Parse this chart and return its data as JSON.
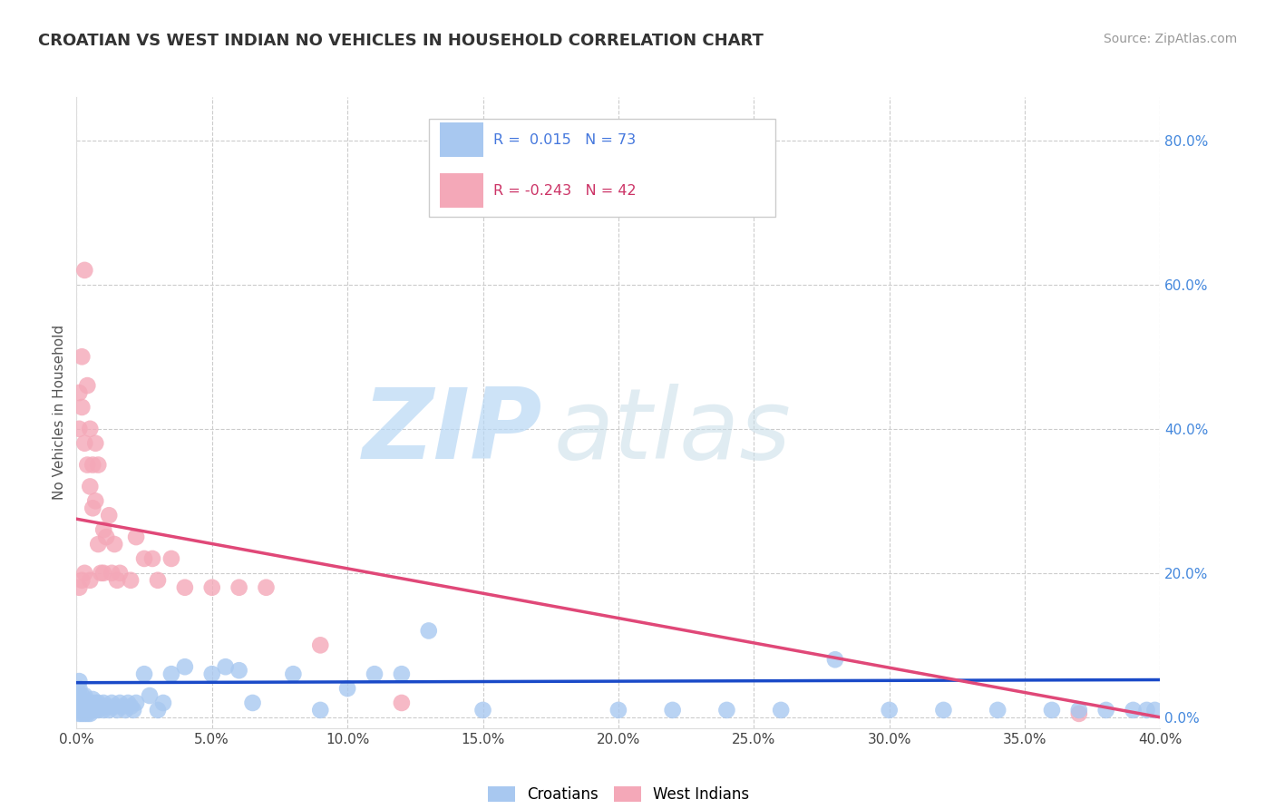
{
  "title": "CROATIAN VS WEST INDIAN NO VEHICLES IN HOUSEHOLD CORRELATION CHART",
  "source": "Source: ZipAtlas.com",
  "ylabel": "No Vehicles in Household",
  "xlim": [
    0.0,
    0.4
  ],
  "ylim": [
    -0.015,
    0.86
  ],
  "x_ticks": [
    0.0,
    0.05,
    0.1,
    0.15,
    0.2,
    0.25,
    0.3,
    0.35,
    0.4
  ],
  "y_ticks": [
    0.0,
    0.2,
    0.4,
    0.6,
    0.8
  ],
  "croatian_color": "#a8c8f0",
  "west_indian_color": "#f4a8b8",
  "croatian_line_color": "#1a4ac8",
  "west_indian_line_color": "#e04878",
  "R_croatian": 0.015,
  "N_croatian": 73,
  "R_west_indian": -0.243,
  "N_west_indian": 42,
  "watermark_zip": "ZIP",
  "watermark_atlas": "atlas",
  "background_color": "#ffffff",
  "legend_r_color": "#4477dd",
  "legend_r2_color": "#cc3366",
  "croatian_x": [
    0.001,
    0.001,
    0.001,
    0.001,
    0.001,
    0.001,
    0.002,
    0.002,
    0.002,
    0.002,
    0.002,
    0.003,
    0.003,
    0.003,
    0.003,
    0.004,
    0.004,
    0.004,
    0.005,
    0.005,
    0.005,
    0.006,
    0.006,
    0.007,
    0.007,
    0.008,
    0.008,
    0.009,
    0.01,
    0.01,
    0.011,
    0.012,
    0.013,
    0.014,
    0.015,
    0.016,
    0.017,
    0.018,
    0.019,
    0.02,
    0.021,
    0.022,
    0.025,
    0.027,
    0.03,
    0.032,
    0.035,
    0.04,
    0.05,
    0.055,
    0.06,
    0.065,
    0.08,
    0.09,
    0.1,
    0.11,
    0.12,
    0.13,
    0.15,
    0.2,
    0.22,
    0.24,
    0.26,
    0.28,
    0.3,
    0.32,
    0.34,
    0.36,
    0.37,
    0.38,
    0.39,
    0.395,
    0.398
  ],
  "croatian_y": [
    0.01,
    0.02,
    0.03,
    0.04,
    0.005,
    0.05,
    0.01,
    0.02,
    0.03,
    0.005,
    0.015,
    0.01,
    0.02,
    0.005,
    0.03,
    0.01,
    0.02,
    0.005,
    0.01,
    0.02,
    0.005,
    0.015,
    0.025,
    0.01,
    0.02,
    0.01,
    0.02,
    0.015,
    0.01,
    0.02,
    0.015,
    0.01,
    0.02,
    0.015,
    0.01,
    0.02,
    0.015,
    0.01,
    0.02,
    0.015,
    0.01,
    0.02,
    0.06,
    0.03,
    0.01,
    0.02,
    0.06,
    0.07,
    0.06,
    0.07,
    0.065,
    0.02,
    0.06,
    0.01,
    0.04,
    0.06,
    0.06,
    0.12,
    0.01,
    0.01,
    0.01,
    0.01,
    0.01,
    0.08,
    0.01,
    0.01,
    0.01,
    0.01,
    0.01,
    0.01,
    0.01,
    0.01,
    0.01
  ],
  "west_indian_x": [
    0.001,
    0.001,
    0.001,
    0.002,
    0.002,
    0.002,
    0.003,
    0.003,
    0.003,
    0.004,
    0.004,
    0.005,
    0.005,
    0.005,
    0.006,
    0.006,
    0.007,
    0.007,
    0.008,
    0.008,
    0.009,
    0.01,
    0.01,
    0.011,
    0.012,
    0.013,
    0.014,
    0.015,
    0.016,
    0.02,
    0.022,
    0.025,
    0.028,
    0.03,
    0.035,
    0.04,
    0.05,
    0.06,
    0.07,
    0.09,
    0.12,
    0.37
  ],
  "west_indian_y": [
    0.45,
    0.4,
    0.18,
    0.5,
    0.43,
    0.19,
    0.62,
    0.38,
    0.2,
    0.46,
    0.35,
    0.4,
    0.32,
    0.19,
    0.35,
    0.29,
    0.38,
    0.3,
    0.35,
    0.24,
    0.2,
    0.26,
    0.2,
    0.25,
    0.28,
    0.2,
    0.24,
    0.19,
    0.2,
    0.19,
    0.25,
    0.22,
    0.22,
    0.19,
    0.22,
    0.18,
    0.18,
    0.18,
    0.18,
    0.1,
    0.02,
    0.005
  ],
  "wi_line_x0": 0.0,
  "wi_line_y0": 0.275,
  "wi_line_x1": 0.4,
  "wi_line_y1": 0.0,
  "cr_line_x0": 0.0,
  "cr_line_y0": 0.048,
  "cr_line_x1": 0.4,
  "cr_line_y1": 0.052
}
